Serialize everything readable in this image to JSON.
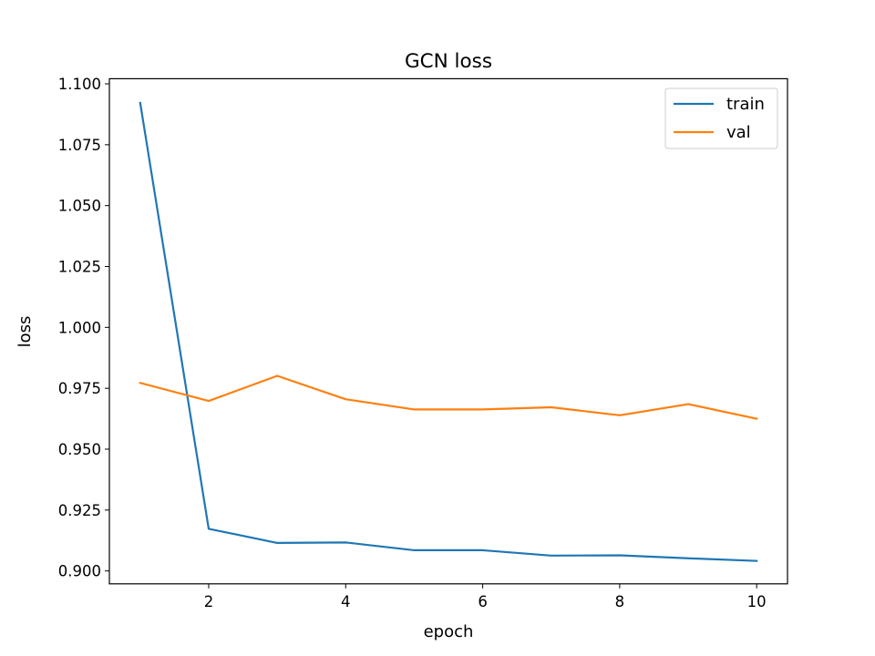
{
  "chart_data": {
    "type": "line",
    "title": "GCN loss",
    "xlabel": "epoch",
    "ylabel": "loss",
    "x": [
      1,
      2,
      3,
      4,
      5,
      6,
      7,
      8,
      9,
      10
    ],
    "xlim": [
      0.55,
      10.45
    ],
    "ylim": [
      0.8947,
      1.1021
    ],
    "xticks": [
      2,
      4,
      6,
      8,
      10
    ],
    "xtick_labels": [
      "2",
      "4",
      "6",
      "8",
      "10"
    ],
    "yticks": [
      0.9,
      0.925,
      0.95,
      0.975,
      1.0,
      1.025,
      1.05,
      1.075,
      1.1
    ],
    "ytick_labels": [
      "0.900",
      "0.925",
      "0.950",
      "0.975",
      "1.000",
      "1.025",
      "1.050",
      "1.075",
      "1.100"
    ],
    "grid": false,
    "legend_position": "top-right",
    "series": [
      {
        "name": "train",
        "color": "#1f77b4",
        "values": [
          1.0922,
          0.9173,
          0.9115,
          0.9117,
          0.9085,
          0.9085,
          0.9063,
          0.9064,
          0.9052,
          0.9041
        ]
      },
      {
        "name": "val",
        "color": "#ff7f0e",
        "values": [
          0.9772,
          0.9698,
          0.9801,
          0.9705,
          0.9663,
          0.9663,
          0.9672,
          0.9639,
          0.9685,
          0.9625
        ]
      }
    ]
  }
}
